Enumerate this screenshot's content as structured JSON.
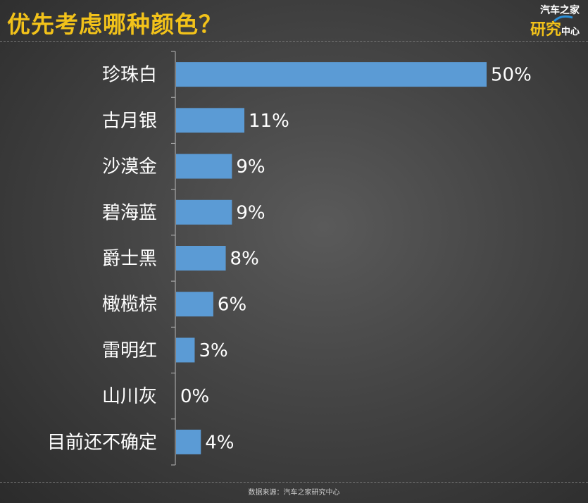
{
  "title": "优先考虑哪种颜色？",
  "logo": {
    "line1": "汽车之家",
    "line2": "研究",
    "line3": "中心"
  },
  "footer": "数据来源：汽车之家研究中心",
  "colors": {
    "bar": "#5b9bd5",
    "title": "#f2c21a",
    "text": "#ffffff",
    "axis": "#b8b8b8"
  },
  "chart_data": {
    "type": "bar",
    "orientation": "horizontal",
    "categories": [
      "珍珠白",
      "古月银",
      "沙漠金",
      "碧海蓝",
      "爵士黑",
      "橄榄棕",
      "雷明红",
      "山川灰",
      "目前还不确定"
    ],
    "values": [
      50,
      11,
      9,
      9,
      8,
      6,
      3,
      0,
      4
    ],
    "labels": [
      "50%",
      "11%",
      "9%",
      "9%",
      "8%",
      "6%",
      "3%",
      "0%",
      "4%"
    ],
    "xlim": [
      0,
      50
    ],
    "grid": false
  }
}
